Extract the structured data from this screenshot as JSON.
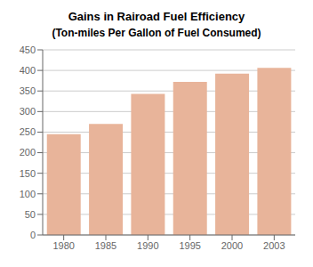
{
  "chart_data": {
    "type": "bar",
    "title": "Gains in Rairoad Fuel Efficiency",
    "subtitle": "(Ton-miles Per Gallon of Fuel Consumed)",
    "categories": [
      "1980",
      "1985",
      "1990",
      "1995",
      "2000",
      "2003"
    ],
    "values": [
      245,
      270,
      343,
      372,
      392,
      406
    ],
    "color": "#E8B49A",
    "ylim": [
      0,
      450
    ],
    "yticks": [
      0,
      50,
      100,
      150,
      200,
      250,
      300,
      350,
      400,
      450
    ],
    "grid": true
  }
}
